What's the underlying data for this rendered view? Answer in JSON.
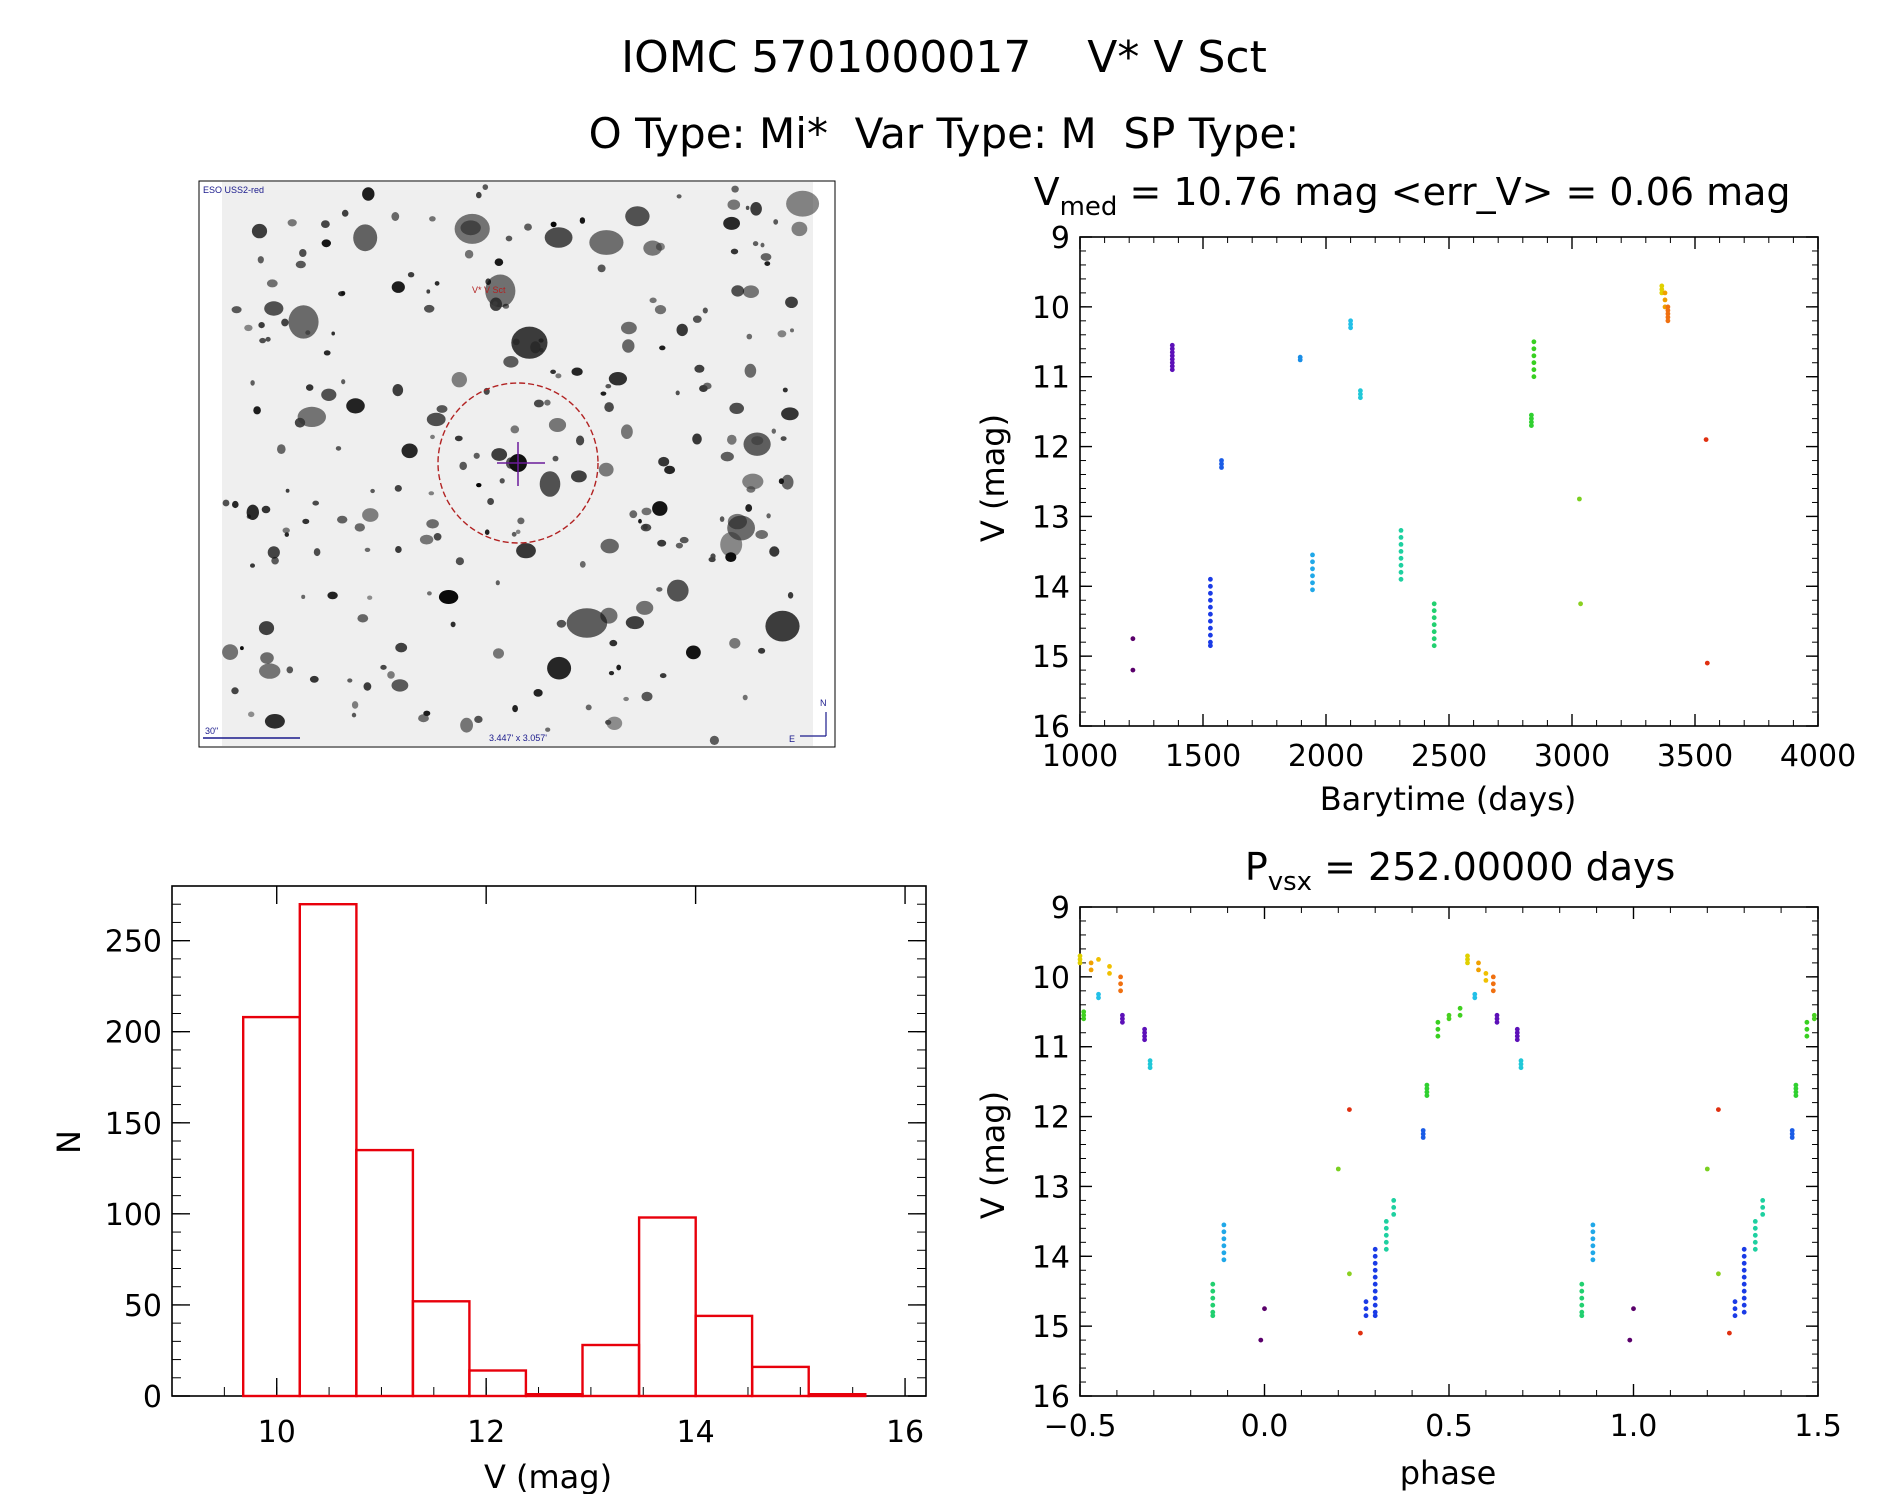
{
  "header": {
    "title_line1": "IOMC 5701000017    V* V Sct",
    "title_line2": "O Type: Mi*  Var Type: M  SP Type:"
  },
  "finder": {
    "survey_label": "ESO USS2-red",
    "object_label": "V* V Sct",
    "scale_label": "30\"",
    "fov_label": "3.447' x 3.057'",
    "north_label": "N",
    "east_label": "E"
  },
  "colors": {
    "histogram": "#e8000b",
    "axis": "#000000",
    "finder_bg": "#f1f1f1",
    "finder_marker": "#b22222",
    "finder_text": "#1a1a8c"
  },
  "chart_data": [
    {
      "id": "lightcurve",
      "type": "scatter",
      "title": "V_med = 10.76 mag <err_V> = 0.06 mag",
      "title_parts": {
        "main": "V",
        "sub": "med",
        "rest": " = 10.76 mag <err_V> = 0.06 mag"
      },
      "xlabel": "Barytime (days)",
      "ylabel": "V (mag)",
      "xlim": [
        1000,
        4000
      ],
      "ylim": [
        16,
        9
      ],
      "y_inverted": true,
      "xticks": [
        1000,
        1500,
        2000,
        2500,
        3000,
        3500,
        4000
      ],
      "yticks": [
        9,
        10,
        11,
        12,
        13,
        14,
        15,
        16
      ],
      "groups": [
        {
          "x": 1215,
          "y": [
            14.75
          ],
          "color": "#5a006b"
        },
        {
          "x": 1215,
          "y": [
            15.2
          ],
          "color": "#5a006b"
        },
        {
          "x": 1375,
          "y": [
            10.55,
            10.6,
            10.65,
            10.7,
            10.75,
            10.8,
            10.85,
            10.9
          ],
          "color": "#5c10b8"
        },
        {
          "x": 1530,
          "y": [
            13.9,
            14.0,
            14.1,
            14.2,
            14.3,
            14.4,
            14.5,
            14.6,
            14.7,
            14.8,
            14.85
          ],
          "color": "#1a3be6"
        },
        {
          "x": 1575,
          "y": [
            12.2,
            12.25,
            12.3
          ],
          "color": "#1a5ce6"
        },
        {
          "x": 1895,
          "y": [
            10.72,
            10.76
          ],
          "color": "#1a8ee6"
        },
        {
          "x": 1945,
          "y": [
            13.55,
            13.65,
            13.75,
            13.85,
            13.95,
            14.05
          ],
          "color": "#20a8e8"
        },
        {
          "x": 2100,
          "y": [
            10.2,
            10.25,
            10.3
          ],
          "color": "#22c0e8"
        },
        {
          "x": 2140,
          "y": [
            11.2,
            11.25,
            11.3
          ],
          "color": "#20c8d8"
        },
        {
          "x": 2305,
          "y": [
            13.2,
            13.3,
            13.4,
            13.5,
            13.6,
            13.7,
            13.8,
            13.9
          ],
          "color": "#1ed0a0"
        },
        {
          "x": 2440,
          "y": [
            14.25,
            14.35,
            14.45,
            14.55,
            14.65,
            14.75,
            14.85
          ],
          "color": "#22d070"
        },
        {
          "x": 2835,
          "y": [
            11.55,
            11.6,
            11.65,
            11.7
          ],
          "color": "#30d030"
        },
        {
          "x": 2845,
          "y": [
            10.5,
            10.6,
            10.7,
            10.8,
            10.9,
            11.0
          ],
          "color": "#38d020"
        },
        {
          "x": 3030,
          "y": [
            12.75
          ],
          "color": "#7ad020"
        },
        {
          "x": 3035,
          "y": [
            14.25
          ],
          "color": "#8ad020"
        },
        {
          "x": 3365,
          "y": [
            9.7,
            9.75,
            9.8
          ],
          "color": "#e0d000"
        },
        {
          "x": 3378,
          "y": [
            9.8,
            9.9,
            10.0
          ],
          "color": "#f0a000"
        },
        {
          "x": 3390,
          "y": [
            10.0,
            10.05,
            10.1,
            10.15,
            10.2
          ],
          "color": "#f07010"
        },
        {
          "x": 3545,
          "y": [
            11.9
          ],
          "color": "#e03010"
        },
        {
          "x": 3550,
          "y": [
            15.1
          ],
          "color": "#e03010"
        }
      ]
    },
    {
      "id": "phased",
      "type": "scatter",
      "title": "P_vsx = 252.00000 days",
      "title_parts": {
        "main": "P",
        "sub": "vsx",
        "rest": " = 252.00000 days"
      },
      "xlabel": "phase",
      "ylabel": "V (mag)",
      "xlim": [
        -0.5,
        1.5
      ],
      "ylim": [
        16,
        9
      ],
      "y_inverted": true,
      "xticks": [
        -0.5,
        0.0,
        0.5,
        1.0,
        1.5
      ],
      "xtick_labels": [
        "−0.5",
        "0.0",
        "0.5",
        "1.0",
        "1.5"
      ],
      "yticks": [
        9,
        10,
        11,
        12,
        13,
        14,
        15,
        16
      ],
      "groups": [
        {
          "x": 0.55,
          "y": [
            9.7,
            9.75,
            9.8
          ],
          "color": "#e0d000"
        },
        {
          "x": 0.58,
          "y": [
            9.8,
            9.9
          ],
          "color": "#f0a000"
        },
        {
          "x": 0.6,
          "y": [
            9.95,
            10.05
          ],
          "color": "#f0c000"
        },
        {
          "x": 0.62,
          "y": [
            10.0,
            10.1,
            10.2
          ],
          "color": "#f07010"
        },
        {
          "x": 0.57,
          "y": [
            10.25,
            10.3
          ],
          "color": "#22c0e8"
        },
        {
          "x": 0.53,
          "y": [
            10.45,
            10.55
          ],
          "color": "#40d020"
        },
        {
          "x": 0.5,
          "y": [
            10.55,
            10.6
          ],
          "color": "#48d020"
        },
        {
          "x": 0.47,
          "y": [
            10.65,
            10.75,
            10.85
          ],
          "color": "#38d020"
        },
        {
          "x": 0.63,
          "y": [
            10.55,
            10.6,
            10.65
          ],
          "color": "#5c10b8"
        },
        {
          "x": 0.685,
          "y": [
            10.75,
            10.8,
            10.85,
            10.9
          ],
          "color": "#5c10b8"
        },
        {
          "x": 0.695,
          "y": [
            11.2,
            11.25,
            11.3
          ],
          "color": "#20c8d8"
        },
        {
          "x": 0.44,
          "y": [
            11.55,
            11.6,
            11.65,
            11.7
          ],
          "color": "#30d030"
        },
        {
          "x": 0.43,
          "y": [
            12.2,
            12.25,
            12.3
          ],
          "color": "#1a5ce6"
        },
        {
          "x": 0.23,
          "y": [
            11.9
          ],
          "color": "#e03010"
        },
        {
          "x": 0.2,
          "y": [
            12.75
          ],
          "color": "#7ad020"
        },
        {
          "x": 0.23,
          "y": [
            14.25
          ],
          "color": "#8ad020"
        },
        {
          "x": 0.35,
          "y": [
            13.2,
            13.3,
            13.4
          ],
          "color": "#1ed0a0"
        },
        {
          "x": 0.33,
          "y": [
            13.5,
            13.6,
            13.7,
            13.8,
            13.9
          ],
          "color": "#1ed0a0"
        },
        {
          "x": 0.3,
          "y": [
            13.9,
            14.0,
            14.1,
            14.2,
            14.3,
            14.4,
            14.5,
            14.6,
            14.7,
            14.8,
            14.85
          ],
          "color": "#1a3be6"
        },
        {
          "x": 0.275,
          "y": [
            14.65,
            14.75,
            14.85
          ],
          "color": "#1a3be6"
        },
        {
          "x": 0.26,
          "y": [
            15.1
          ],
          "color": "#e03010"
        },
        {
          "x": -0.5,
          "y": [
            9.7,
            9.75,
            9.8
          ],
          "color": "#e0d000"
        },
        {
          "x": -0.47,
          "y": [
            9.8,
            9.9
          ],
          "color": "#f0a000"
        },
        {
          "x": -0.45,
          "y": [
            9.75
          ],
          "color": "#f0c000"
        },
        {
          "x": -0.42,
          "y": [
            9.85,
            9.95
          ],
          "color": "#f0c000"
        },
        {
          "x": -0.39,
          "y": [
            10.0,
            10.1,
            10.2
          ],
          "color": "#f07010"
        },
        {
          "x": -0.45,
          "y": [
            10.25,
            10.3
          ],
          "color": "#22c0e8"
        },
        {
          "x": -0.49,
          "y": [
            10.5,
            10.55,
            10.6
          ],
          "color": "#40d020"
        },
        {
          "x": -0.385,
          "y": [
            10.55,
            10.6,
            10.65
          ],
          "color": "#5c10b8"
        },
        {
          "x": -0.325,
          "y": [
            10.75,
            10.8,
            10.85,
            10.9
          ],
          "color": "#5c10b8"
        },
        {
          "x": -0.31,
          "y": [
            11.2,
            11.25,
            11.3
          ],
          "color": "#20c8d8"
        },
        {
          "x": -0.11,
          "y": [
            13.55,
            13.65,
            13.75,
            13.85,
            13.95,
            14.05
          ],
          "color": "#20a8e8"
        },
        {
          "x": -0.14,
          "y": [
            14.4,
            14.5,
            14.6,
            14.7,
            14.8,
            14.85
          ],
          "color": "#22d070"
        },
        {
          "x": 0.0,
          "y": [
            14.75
          ],
          "color": "#5a006b"
        },
        {
          "x": -0.01,
          "y": [
            15.2
          ],
          "color": "#5a006b"
        },
        {
          "x": 0.89,
          "y": [
            13.55,
            13.65,
            13.75,
            13.85,
            13.95,
            14.05
          ],
          "color": "#20a8e8"
        },
        {
          "x": 0.86,
          "y": [
            14.4,
            14.5,
            14.6,
            14.7,
            14.8,
            14.85
          ],
          "color": "#22d070"
        },
        {
          "x": 1.0,
          "y": [
            14.75
          ],
          "color": "#5a006b"
        },
        {
          "x": 0.99,
          "y": [
            15.2
          ],
          "color": "#5a006b"
        },
        {
          "x": 1.23,
          "y": [
            11.9
          ],
          "color": "#e03010"
        },
        {
          "x": 1.2,
          "y": [
            12.75
          ],
          "color": "#7ad020"
        },
        {
          "x": 1.23,
          "y": [
            14.25
          ],
          "color": "#8ad020"
        },
        {
          "x": 1.35,
          "y": [
            13.2,
            13.3,
            13.4
          ],
          "color": "#1ed0a0"
        },
        {
          "x": 1.33,
          "y": [
            13.5,
            13.6,
            13.7,
            13.8,
            13.9
          ],
          "color": "#1ed0a0"
        },
        {
          "x": 1.3,
          "y": [
            13.9,
            14.0,
            14.1,
            14.2,
            14.3,
            14.4,
            14.5,
            14.6,
            14.7,
            14.8
          ],
          "color": "#1a3be6"
        },
        {
          "x": 1.275,
          "y": [
            14.65,
            14.75,
            14.85
          ],
          "color": "#1a3be6"
        },
        {
          "x": 1.26,
          "y": [
            15.1
          ],
          "color": "#e03010"
        },
        {
          "x": 1.43,
          "y": [
            12.2,
            12.25,
            12.3
          ],
          "color": "#1a5ce6"
        },
        {
          "x": 1.44,
          "y": [
            11.55,
            11.6,
            11.65,
            11.7
          ],
          "color": "#30d030"
        },
        {
          "x": 1.47,
          "y": [
            10.65,
            10.75,
            10.85
          ],
          "color": "#38d020"
        },
        {
          "x": 1.49,
          "y": [
            10.55,
            10.6
          ],
          "color": "#48d020"
        }
      ]
    },
    {
      "id": "histogram",
      "type": "bar",
      "title": "",
      "xlabel": "V (mag)",
      "ylabel": "N",
      "xlim": [
        9.0,
        16.2
      ],
      "ylim": [
        0,
        280
      ],
      "xticks": [
        10,
        12,
        14,
        16
      ],
      "yticks": [
        0,
        50,
        100,
        150,
        200,
        250
      ],
      "bin_width": 0.54,
      "bins": [
        {
          "left": 9.68,
          "count": 208
        },
        {
          "left": 10.22,
          "count": 270
        },
        {
          "left": 10.76,
          "count": 135
        },
        {
          "left": 11.3,
          "count": 52
        },
        {
          "left": 11.84,
          "count": 14
        },
        {
          "left": 12.38,
          "count": 1
        },
        {
          "left": 12.92,
          "count": 28
        },
        {
          "left": 13.46,
          "count": 98
        },
        {
          "left": 14.0,
          "count": 44
        },
        {
          "left": 14.54,
          "count": 16
        },
        {
          "left": 15.08,
          "count": 1
        }
      ]
    }
  ]
}
